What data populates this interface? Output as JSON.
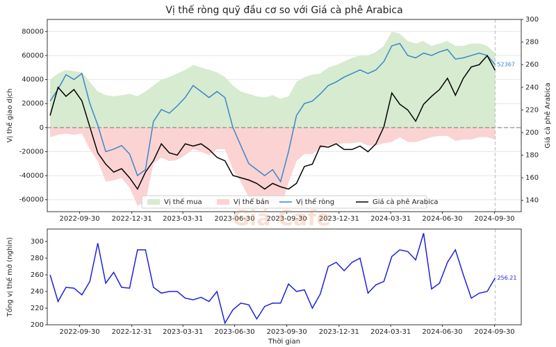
{
  "watermark": "Giá Cafe",
  "chart_data": [
    {
      "type": "line",
      "title": "Vị thế ròng quỹ đầu cơ so với Giá cà phê Arabica",
      "ylabel": "Vị thế giao dịch",
      "y2label": "Giá cà phê Arabica",
      "x": [
        "2022-08-09",
        "2022-08-23",
        "2022-09-06",
        "2022-09-20",
        "2022-10-04",
        "2022-10-18",
        "2022-11-01",
        "2022-11-15",
        "2022-11-29",
        "2022-12-13",
        "2022-12-27",
        "2023-01-10",
        "2023-01-24",
        "2023-02-07",
        "2023-02-21",
        "2023-03-07",
        "2023-03-21",
        "2023-04-04",
        "2023-04-18",
        "2023-05-02",
        "2023-05-16",
        "2023-05-30",
        "2023-06-13",
        "2023-06-27",
        "2023-07-11",
        "2023-07-25",
        "2023-08-08",
        "2023-08-22",
        "2023-09-05",
        "2023-09-19",
        "2023-10-03",
        "2023-10-17",
        "2023-10-31",
        "2023-11-14",
        "2023-11-28",
        "2023-12-12",
        "2023-12-26",
        "2024-01-09",
        "2024-01-23",
        "2024-02-06",
        "2024-02-20",
        "2024-03-05",
        "2024-03-19",
        "2024-04-02",
        "2024-04-16",
        "2024-04-30",
        "2024-05-14",
        "2024-05-28",
        "2024-06-11",
        "2024-06-25",
        "2024-07-09",
        "2024-07-23",
        "2024-08-06",
        "2024-08-20",
        "2024-09-03",
        "2024-09-17",
        "2024-10-01"
      ],
      "xlim": [
        "2022-08-04",
        "2024-11-16"
      ],
      "xticks": [
        "2022-09-30",
        "2022-12-31",
        "2023-03-31",
        "2023-06-30",
        "2023-09-30",
        "2023-12-31",
        "2024-03-31",
        "2024-06-30",
        "2024-09-30"
      ],
      "ylim": [
        -70000,
        90000
      ],
      "yticks": [
        -60000,
        -40000,
        -20000,
        0,
        20000,
        40000,
        60000,
        80000
      ],
      "y2lim": [
        130,
        300
      ],
      "y2ticks": [
        140,
        160,
        180,
        200,
        220,
        240,
        260,
        280,
        300
      ],
      "grid": true,
      "zero_line": true,
      "mark_last": true,
      "legend": "lower center",
      "series": [
        {
          "name": "Vị thế mua",
          "type": "area",
          "color": "#d6ebd0",
          "values": [
            40000,
            45000,
            48000,
            47000,
            46000,
            38000,
            30000,
            27000,
            26000,
            27000,
            28000,
            26000,
            30000,
            35000,
            40000,
            42000,
            45000,
            48000,
            52000,
            50000,
            48000,
            46000,
            42000,
            35000,
            30000,
            28000,
            26000,
            25000,
            27000,
            24000,
            26000,
            38000,
            42000,
            44000,
            45000,
            50000,
            52000,
            55000,
            58000,
            60000,
            60000,
            63000,
            68000,
            80000,
            78000,
            72000,
            70000,
            72000,
            68000,
            70000,
            72000,
            68000,
            68000,
            70000,
            70000,
            68000,
            62000
          ]
        },
        {
          "name": "Vị thế bán",
          "type": "area",
          "color": "#fbd3d3",
          "values": [
            -8000,
            -6000,
            -5000,
            -6000,
            -5000,
            -18000,
            -28000,
            -45000,
            -44000,
            -42000,
            -50000,
            -65000,
            -62000,
            -30000,
            -25000,
            -28000,
            -27000,
            -23000,
            -18000,
            -20000,
            -23000,
            -18000,
            -18000,
            -35000,
            -45000,
            -58000,
            -60000,
            -65000,
            -62000,
            -68000,
            -46000,
            -28000,
            -22000,
            -22000,
            -17000,
            -15000,
            -14000,
            -13000,
            -13000,
            -12000,
            -15000,
            -15000,
            -13000,
            -12000,
            -8000,
            -12000,
            -12000,
            -10000,
            -8000,
            -7000,
            -7000,
            -11000,
            -10000,
            -10000,
            -8000,
            -8000,
            -10000
          ]
        },
        {
          "name": "Vị thế ròng",
          "type": "line",
          "color": "#3a86c8",
          "annotate_last": true,
          "values": [
            22000,
            32000,
            44000,
            40000,
            45000,
            20000,
            2000,
            -20000,
            -18000,
            -15000,
            -22000,
            -40000,
            -35000,
            5000,
            15000,
            12000,
            18000,
            25000,
            35000,
            30000,
            25000,
            30000,
            25000,
            0,
            -15000,
            -30000,
            -35000,
            -40000,
            -35000,
            -45000,
            -20000,
            10000,
            20000,
            22000,
            28000,
            35000,
            38000,
            42000,
            45000,
            48000,
            45000,
            48000,
            55000,
            68000,
            70000,
            60000,
            58000,
            62000,
            60000,
            63000,
            65000,
            57000,
            58000,
            60000,
            62000,
            60000,
            52367
          ]
        },
        {
          "name": "Giá cà phê Arabica",
          "type": "line",
          "axis": "y2",
          "color": "#000000",
          "values": [
            215,
            240,
            232,
            238,
            228,
            205,
            182,
            172,
            165,
            168,
            160,
            150,
            165,
            175,
            190,
            182,
            180,
            190,
            188,
            190,
            185,
            178,
            175,
            162,
            160,
            158,
            155,
            150,
            155,
            152,
            150,
            155,
            170,
            172,
            188,
            187,
            190,
            185,
            185,
            188,
            183,
            190,
            205,
            235,
            225,
            220,
            210,
            225,
            232,
            238,
            248,
            233,
            248,
            258,
            260,
            268,
            255
          ]
        }
      ]
    },
    {
      "type": "line",
      "xlabel": "Thời gian",
      "ylabel": "Tổng vị thế mở (nghìn)",
      "x": [
        "2022-08-09",
        "2022-08-23",
        "2022-09-06",
        "2022-09-20",
        "2022-10-04",
        "2022-10-18",
        "2022-11-01",
        "2022-11-15",
        "2022-11-29",
        "2022-12-13",
        "2022-12-27",
        "2023-01-10",
        "2023-01-24",
        "2023-02-07",
        "2023-02-21",
        "2023-03-07",
        "2023-03-21",
        "2023-04-04",
        "2023-04-18",
        "2023-05-02",
        "2023-05-16",
        "2023-05-30",
        "2023-06-13",
        "2023-06-27",
        "2023-07-11",
        "2023-07-25",
        "2023-08-08",
        "2023-08-22",
        "2023-09-05",
        "2023-09-19",
        "2023-10-03",
        "2023-10-17",
        "2023-10-31",
        "2023-11-14",
        "2023-11-28",
        "2023-12-12",
        "2023-12-26",
        "2024-01-09",
        "2024-01-23",
        "2024-02-06",
        "2024-02-20",
        "2024-03-05",
        "2024-03-19",
        "2024-04-02",
        "2024-04-16",
        "2024-04-30",
        "2024-05-14",
        "2024-05-28",
        "2024-06-11",
        "2024-06-25",
        "2024-07-09",
        "2024-07-23",
        "2024-08-06",
        "2024-08-20",
        "2024-09-03",
        "2024-09-17",
        "2024-10-01"
      ],
      "xlim": [
        "2022-08-04",
        "2024-11-16"
      ],
      "xticks": [
        "2022-09-30",
        "2022-12-31",
        "2023-03-31",
        "2023-06-30",
        "2023-09-30",
        "2023-12-31",
        "2024-03-31",
        "2024-06-30",
        "2024-09-30"
      ],
      "ylim": [
        200,
        315
      ],
      "yticks": [
        200,
        220,
        240,
        260,
        280,
        300
      ],
      "mark_last": true,
      "series": [
        {
          "name": "Tổng vị thế mở",
          "type": "line",
          "color": "#1f1fe0",
          "annotate_last": true,
          "values": [
            260,
            228,
            245,
            244,
            236,
            252,
            298,
            250,
            263,
            245,
            244,
            290,
            290,
            245,
            238,
            240,
            240,
            232,
            230,
            233,
            228,
            240,
            202,
            218,
            226,
            224,
            207,
            222,
            226,
            226,
            249,
            240,
            242,
            220,
            237,
            270,
            275,
            265,
            275,
            280,
            238,
            248,
            252,
            282,
            290,
            288,
            278,
            310,
            243,
            250,
            275,
            290,
            260,
            232,
            238,
            240,
            256.21
          ]
        }
      ]
    }
  ]
}
